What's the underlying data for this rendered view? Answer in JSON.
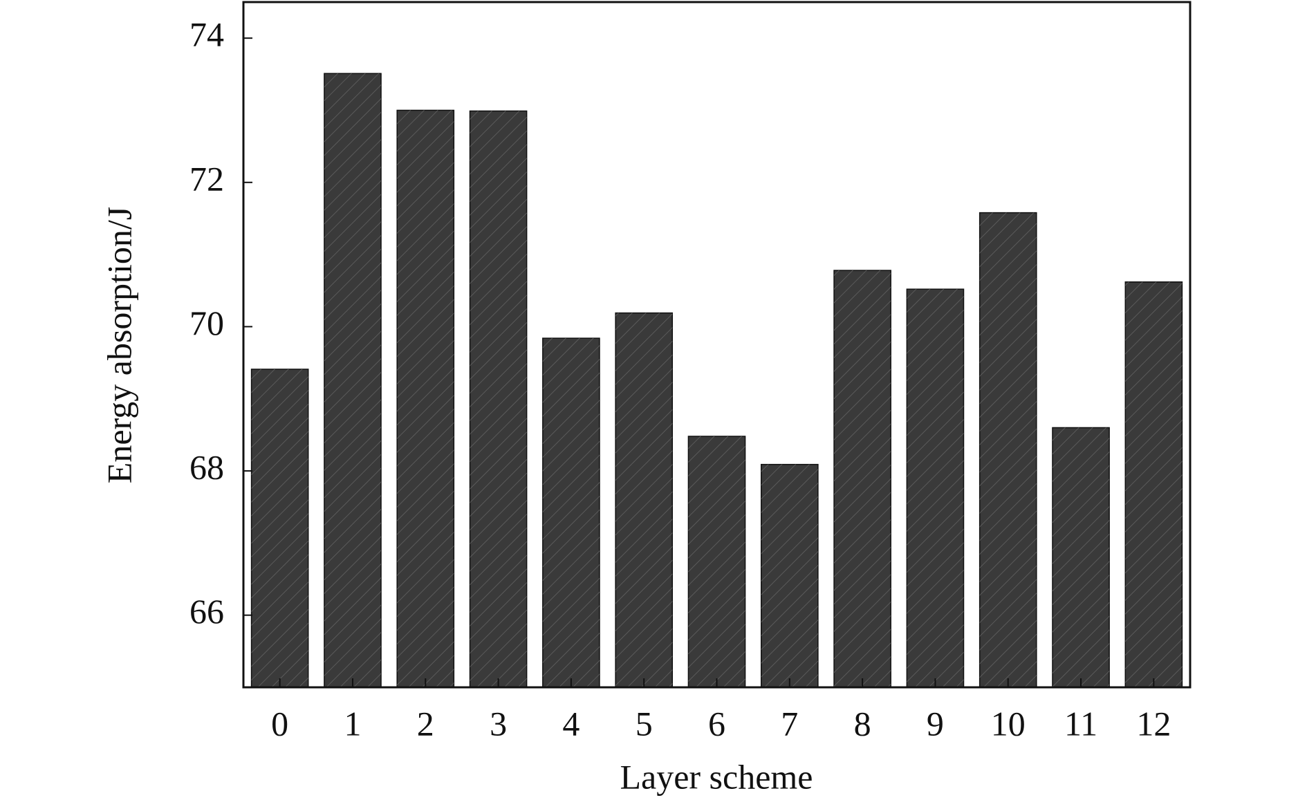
{
  "chart_data": {
    "type": "bar",
    "x_label": "Layer scheme",
    "y_label": "Energy absorption/J",
    "categories": [
      "0",
      "1",
      "2",
      "3",
      "4",
      "5",
      "6",
      "7",
      "8",
      "9",
      "10",
      "11",
      "12"
    ],
    "values": [
      69.41,
      73.51,
      73.0,
      72.99,
      69.84,
      70.19,
      68.48,
      68.09,
      70.78,
      70.52,
      71.58,
      68.6,
      70.62
    ],
    "color": "#3a3a3a",
    "ylim": [
      65,
      74.5
    ],
    "yticks": [
      66,
      68,
      70,
      72,
      74
    ]
  }
}
